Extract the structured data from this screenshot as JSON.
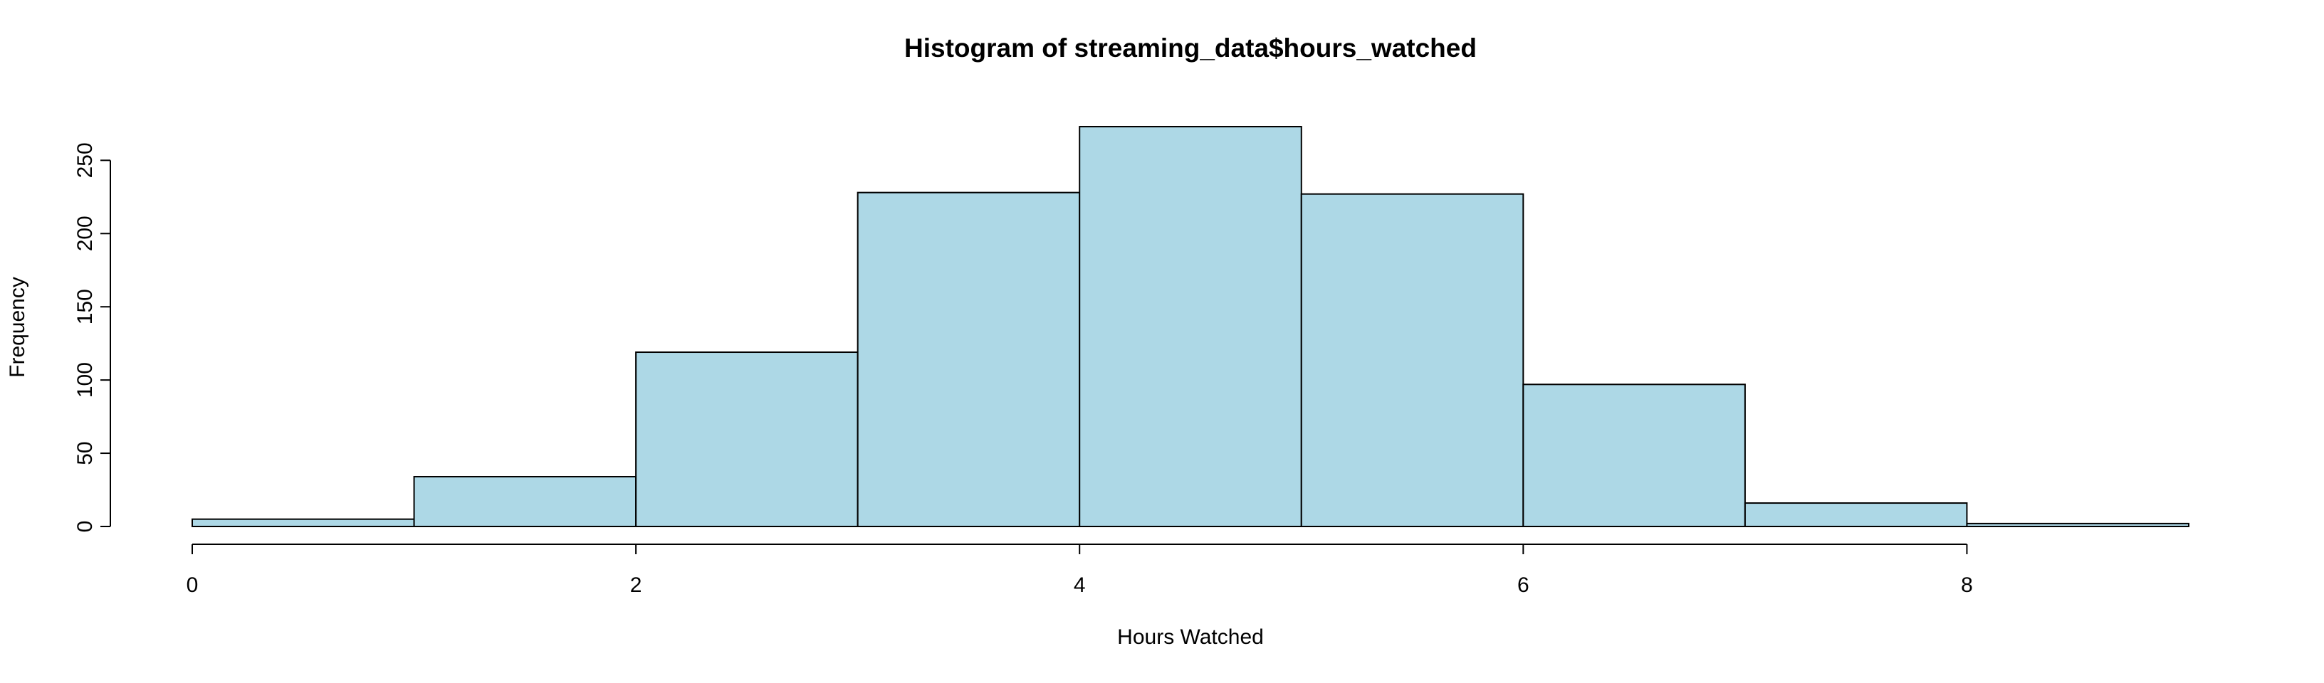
{
  "chart_data": {
    "type": "bar",
    "title": "Histogram of streaming_data$hours_watched",
    "xlabel": "Hours Watched",
    "ylabel": "Frequency",
    "bins": [
      {
        "x0": 0,
        "x1": 1,
        "count": 5
      },
      {
        "x0": 1,
        "x1": 2,
        "count": 34
      },
      {
        "x0": 2,
        "x1": 3,
        "count": 119
      },
      {
        "x0": 3,
        "x1": 4,
        "count": 228
      },
      {
        "x0": 4,
        "x1": 5,
        "count": 273
      },
      {
        "x0": 5,
        "x1": 6,
        "count": 227
      },
      {
        "x0": 6,
        "x1": 7,
        "count": 97
      },
      {
        "x0": 7,
        "x1": 8,
        "count": 16
      },
      {
        "x0": 8,
        "x1": 9,
        "count": 2
      }
    ],
    "xlim": [
      0,
      9
    ],
    "ylim": [
      0,
      273
    ],
    "x_ticks": [
      0,
      2,
      4,
      6,
      8
    ],
    "y_ticks": [
      0,
      50,
      100,
      150,
      200,
      250
    ],
    "bar_color": "#ADD8E6",
    "grid": false,
    "legend": "none"
  }
}
